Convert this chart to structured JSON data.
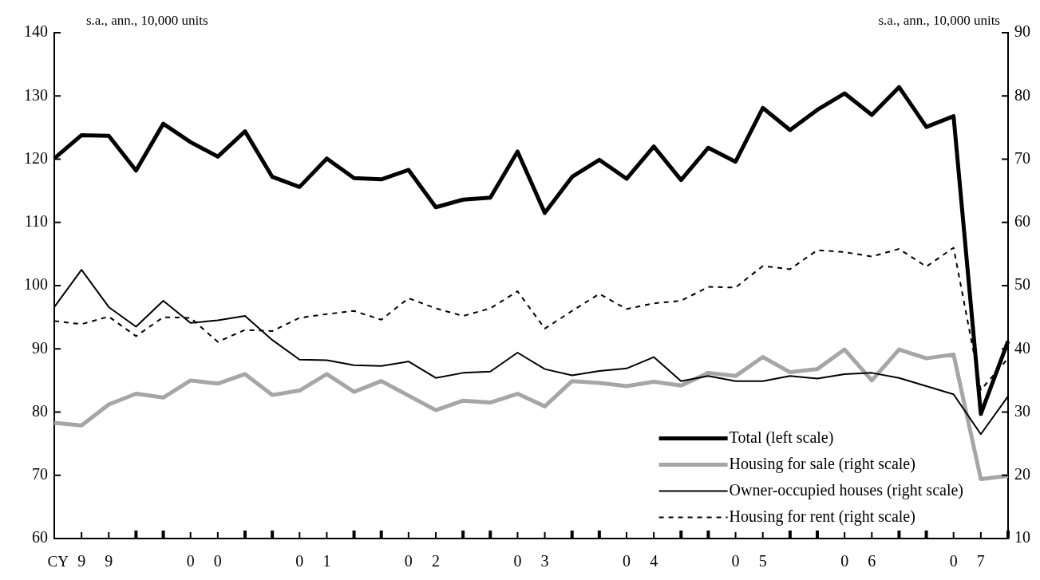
{
  "chart_data": {
    "type": "line",
    "xlabel": "CY",
    "ylabel": "s.a., ann., 10,000 units",
    "y2label": "s.a., ann., 10,000 units",
    "categories": [
      null,
      "9",
      "9",
      null,
      null,
      "0",
      "0",
      null,
      null,
      "0",
      "1",
      null,
      null,
      "0",
      "2",
      null,
      null,
      "0",
      "3",
      null,
      null,
      "0",
      "4",
      null,
      null,
      "0",
      "5",
      null,
      null,
      "0",
      "6",
      null,
      null,
      "0",
      "7",
      null
    ],
    "series": [
      {
        "name": "Total (left scale)",
        "color": "#000000",
        "axis": "y",
        "line_style": "solid",
        "values": [
          120.1,
          123.8,
          123.7,
          118.2,
          125.6,
          122.7,
          120.4,
          124.4,
          117.2,
          115.6,
          120.1,
          117.0,
          116.8,
          118.3,
          112.4,
          113.6,
          113.9,
          121.2,
          111.5,
          117.2,
          119.9,
          116.9,
          122.0,
          116.7,
          121.8,
          119.6,
          128.1,
          124.6,
          127.8,
          130.4,
          127.0,
          131.4,
          125.1,
          126.8,
          79.7,
          91.2
        ]
      },
      {
        "name": "Housing for sale (right scale)",
        "color": "#a6a6a6",
        "axis": "y2",
        "line_style": "solid",
        "values": [
          28.3,
          27.9,
          31.2,
          32.9,
          32.3,
          35.0,
          34.5,
          36.0,
          32.7,
          33.4,
          36.0,
          33.2,
          34.9,
          32.6,
          30.3,
          31.8,
          31.5,
          32.9,
          30.9,
          34.9,
          34.6,
          34.1,
          34.8,
          34.2,
          36.2,
          35.7,
          38.7,
          36.3,
          36.8,
          39.9,
          35.0,
          39.9,
          38.5,
          39.1,
          19.4,
          19.9
        ]
      },
      {
        "name": "Owner-occupied houses (right scale)",
        "color": "#000000",
        "axis": "y2",
        "line_style": "solid",
        "values": [
          46.6,
          52.5,
          46.6,
          43.5,
          47.6,
          44.1,
          44.5,
          45.2,
          41.4,
          38.3,
          38.2,
          37.4,
          37.3,
          38.0,
          35.4,
          36.2,
          36.4,
          39.4,
          36.8,
          35.8,
          36.5,
          36.9,
          38.7,
          34.9,
          35.7,
          34.9,
          34.9,
          35.7,
          35.3,
          36.0,
          36.2,
          35.4,
          34.1,
          32.8,
          26.5,
          32.5
        ]
      },
      {
        "name": "Housing for rent (right scale)",
        "color": "#000000",
        "axis": "y2",
        "line_style": "dashed",
        "values": [
          44.4,
          43.9,
          45.1,
          42.0,
          45.0,
          44.9,
          41.1,
          43.0,
          42.8,
          44.9,
          45.5,
          46.0,
          44.6,
          48.0,
          46.4,
          45.2,
          46.4,
          49.1,
          43.2,
          46.0,
          48.7,
          46.3,
          47.2,
          47.6,
          49.8,
          49.7,
          53.1,
          52.6,
          55.6,
          55.3,
          54.6,
          55.8,
          53.0,
          56.0,
          33.5,
          38.5
        ]
      }
    ],
    "ylim": [
      60,
      140
    ],
    "yticks": [
      60,
      70,
      80,
      90,
      100,
      110,
      120,
      130,
      140
    ],
    "y2lim": [
      10,
      90
    ],
    "y2ticks": [
      10,
      20,
      30,
      40,
      50,
      60,
      70,
      80,
      90
    ],
    "grid": false,
    "legend": "bottom right",
    "marker": "none"
  }
}
